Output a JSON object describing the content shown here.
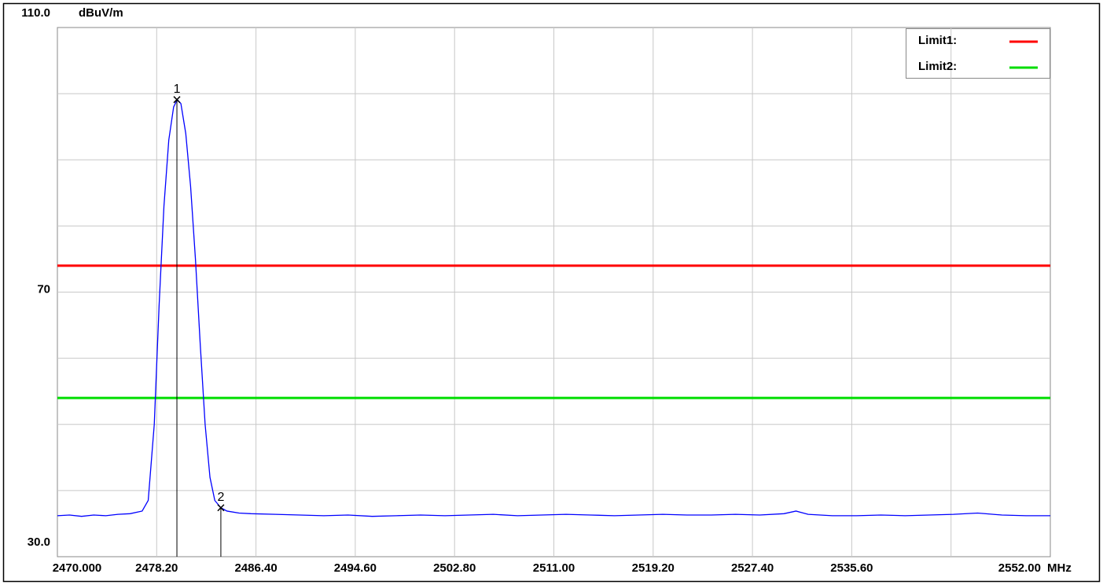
{
  "chart_data": {
    "type": "line",
    "ylabel": "dBuV/m",
    "xlabel": "MHz",
    "xlim": [
      2470,
      2552
    ],
    "ylim": [
      30,
      110
    ],
    "yticks": [
      {
        "value": 110,
        "label": "110.0"
      },
      70,
      {
        "value": 30,
        "label": "30.0"
      }
    ],
    "ygrid": [
      40,
      50,
      60,
      70,
      80,
      90,
      100
    ],
    "xticks": [
      {
        "value": 2470,
        "label": "2470.000"
      },
      {
        "value": 2478.2,
        "label": "2478.20"
      },
      {
        "value": 2486.4,
        "label": "2486.40"
      },
      {
        "value": 2494.6,
        "label": "2494.60"
      },
      {
        "value": 2502.8,
        "label": "2502.80"
      },
      {
        "value": 2511,
        "label": "2511.00"
      },
      {
        "value": 2519.2,
        "label": "2519.20"
      },
      {
        "value": 2527.4,
        "label": "2527.40"
      },
      {
        "value": 2535.6,
        "label": "2535.60"
      },
      {
        "value": 2552,
        "label": "2552.00"
      }
    ],
    "xgrid": [
      2478.2,
      2486.4,
      2494.6,
      2502.8,
      2511,
      2519.2,
      2527.4,
      2535.6,
      2543.8
    ],
    "grid": true,
    "limits": [
      {
        "name": "Limit1:",
        "color": "#ff0000",
        "value": 74
      },
      {
        "name": "Limit2:",
        "color": "#00dd00",
        "value": 54
      }
    ],
    "markers": [
      {
        "label": "1",
        "x": 2479.87,
        "value": 99.1
      },
      {
        "label": "2",
        "x": 2483.5,
        "value": 37.4
      }
    ],
    "series": [
      {
        "color": "#0000ff",
        "x": [
          2470,
          2471,
          2472,
          2473,
          2474,
          2475,
          2476,
          2477,
          2477.5,
          2478,
          2478.4,
          2478.8,
          2479.2,
          2479.6,
          2479.9,
          2480.2,
          2480.6,
          2481,
          2481.4,
          2481.8,
          2482.2,
          2482.6,
          2483,
          2483.5,
          2484,
          2485,
          2486,
          2488,
          2490,
          2492,
          2494,
          2496,
          2498,
          2500,
          2502,
          2504,
          2506,
          2508,
          2510,
          2512,
          2514,
          2516,
          2518,
          2520,
          2522,
          2524,
          2526,
          2528,
          2530,
          2531,
          2532,
          2534,
          2536,
          2538,
          2540,
          2542,
          2544,
          2546,
          2548,
          2550,
          2552
        ],
        "values": [
          36.2,
          36.3,
          36.1,
          36.3,
          36.2,
          36.4,
          36.5,
          36.9,
          38.5,
          50,
          68,
          83,
          93,
          98,
          99.1,
          98.5,
          94,
          86,
          75,
          62,
          50,
          42,
          38.5,
          37.4,
          36.9,
          36.6,
          36.5,
          36.4,
          36.3,
          36.2,
          36.3,
          36.1,
          36.2,
          36.3,
          36.2,
          36.3,
          36.4,
          36.2,
          36.3,
          36.4,
          36.3,
          36.2,
          36.3,
          36.4,
          36.3,
          36.3,
          36.4,
          36.3,
          36.5,
          36.9,
          36.4,
          36.2,
          36.2,
          36.3,
          36.2,
          36.3,
          36.4,
          36.6,
          36.3,
          36.2,
          36.2
        ]
      }
    ]
  }
}
